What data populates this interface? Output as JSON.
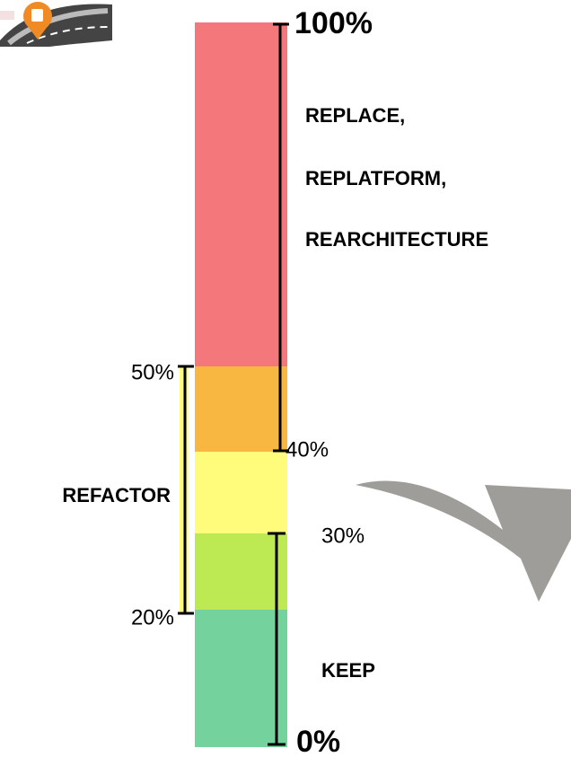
{
  "brackets": [
    {
      "top_label": "100%",
      "bottom_label": "40%",
      "lines": [
        "REPLACE,",
        "REPLATFORM,",
        "REARCHITECTURE"
      ]
    },
    {
      "top_label": "50%",
      "bottom_label": "20%",
      "lines": [
        "REFACTOR"
      ]
    },
    {
      "top_label": "30%",
      "bottom_label": "0%",
      "lines": [
        "KEEP"
      ]
    }
  ]
}
